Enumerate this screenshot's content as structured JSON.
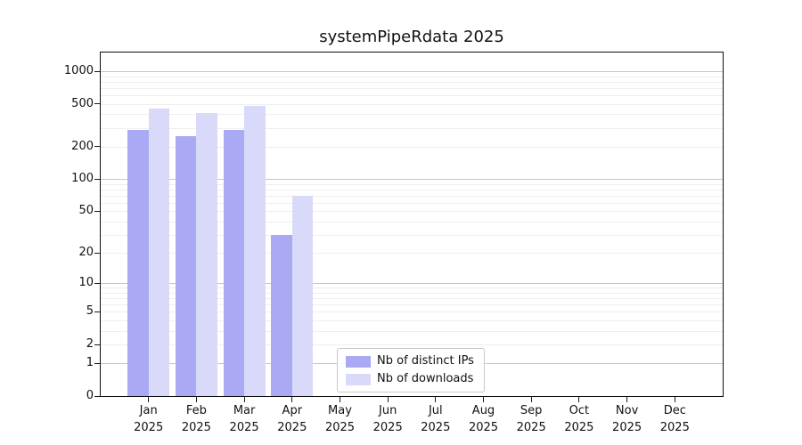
{
  "title": "systemPipeRdata 2025",
  "chart_data": {
    "type": "bar",
    "title": "systemPipeRdata 2025",
    "categories": [
      "Jan",
      "Feb",
      "Mar",
      "Apr",
      "May",
      "Jun",
      "Jul",
      "Aug",
      "Sep",
      "Oct",
      "Nov",
      "Dec"
    ],
    "year_label": "2025",
    "series": [
      {
        "name": "Nb of distinct IPs",
        "color": "#a9a9f4",
        "values": [
          285,
          250,
          285,
          30,
          null,
          null,
          null,
          null,
          null,
          null,
          null,
          null
        ]
      },
      {
        "name": "Nb of downloads",
        "color": "#d9d9f9",
        "values": [
          455,
          410,
          475,
          70,
          null,
          null,
          null,
          null,
          null,
          null,
          null,
          null
        ]
      }
    ],
    "yscale": "log1p",
    "yticks": [
      0,
      1,
      2,
      5,
      10,
      20,
      50,
      100,
      200,
      500,
      1000
    ],
    "ylim": [
      0,
      1500
    ],
    "grid": "horizontal",
    "legend_position": "lower center",
    "grid_major_color": "#c6c6c6",
    "grid_minor_color": "#eeeeee"
  }
}
